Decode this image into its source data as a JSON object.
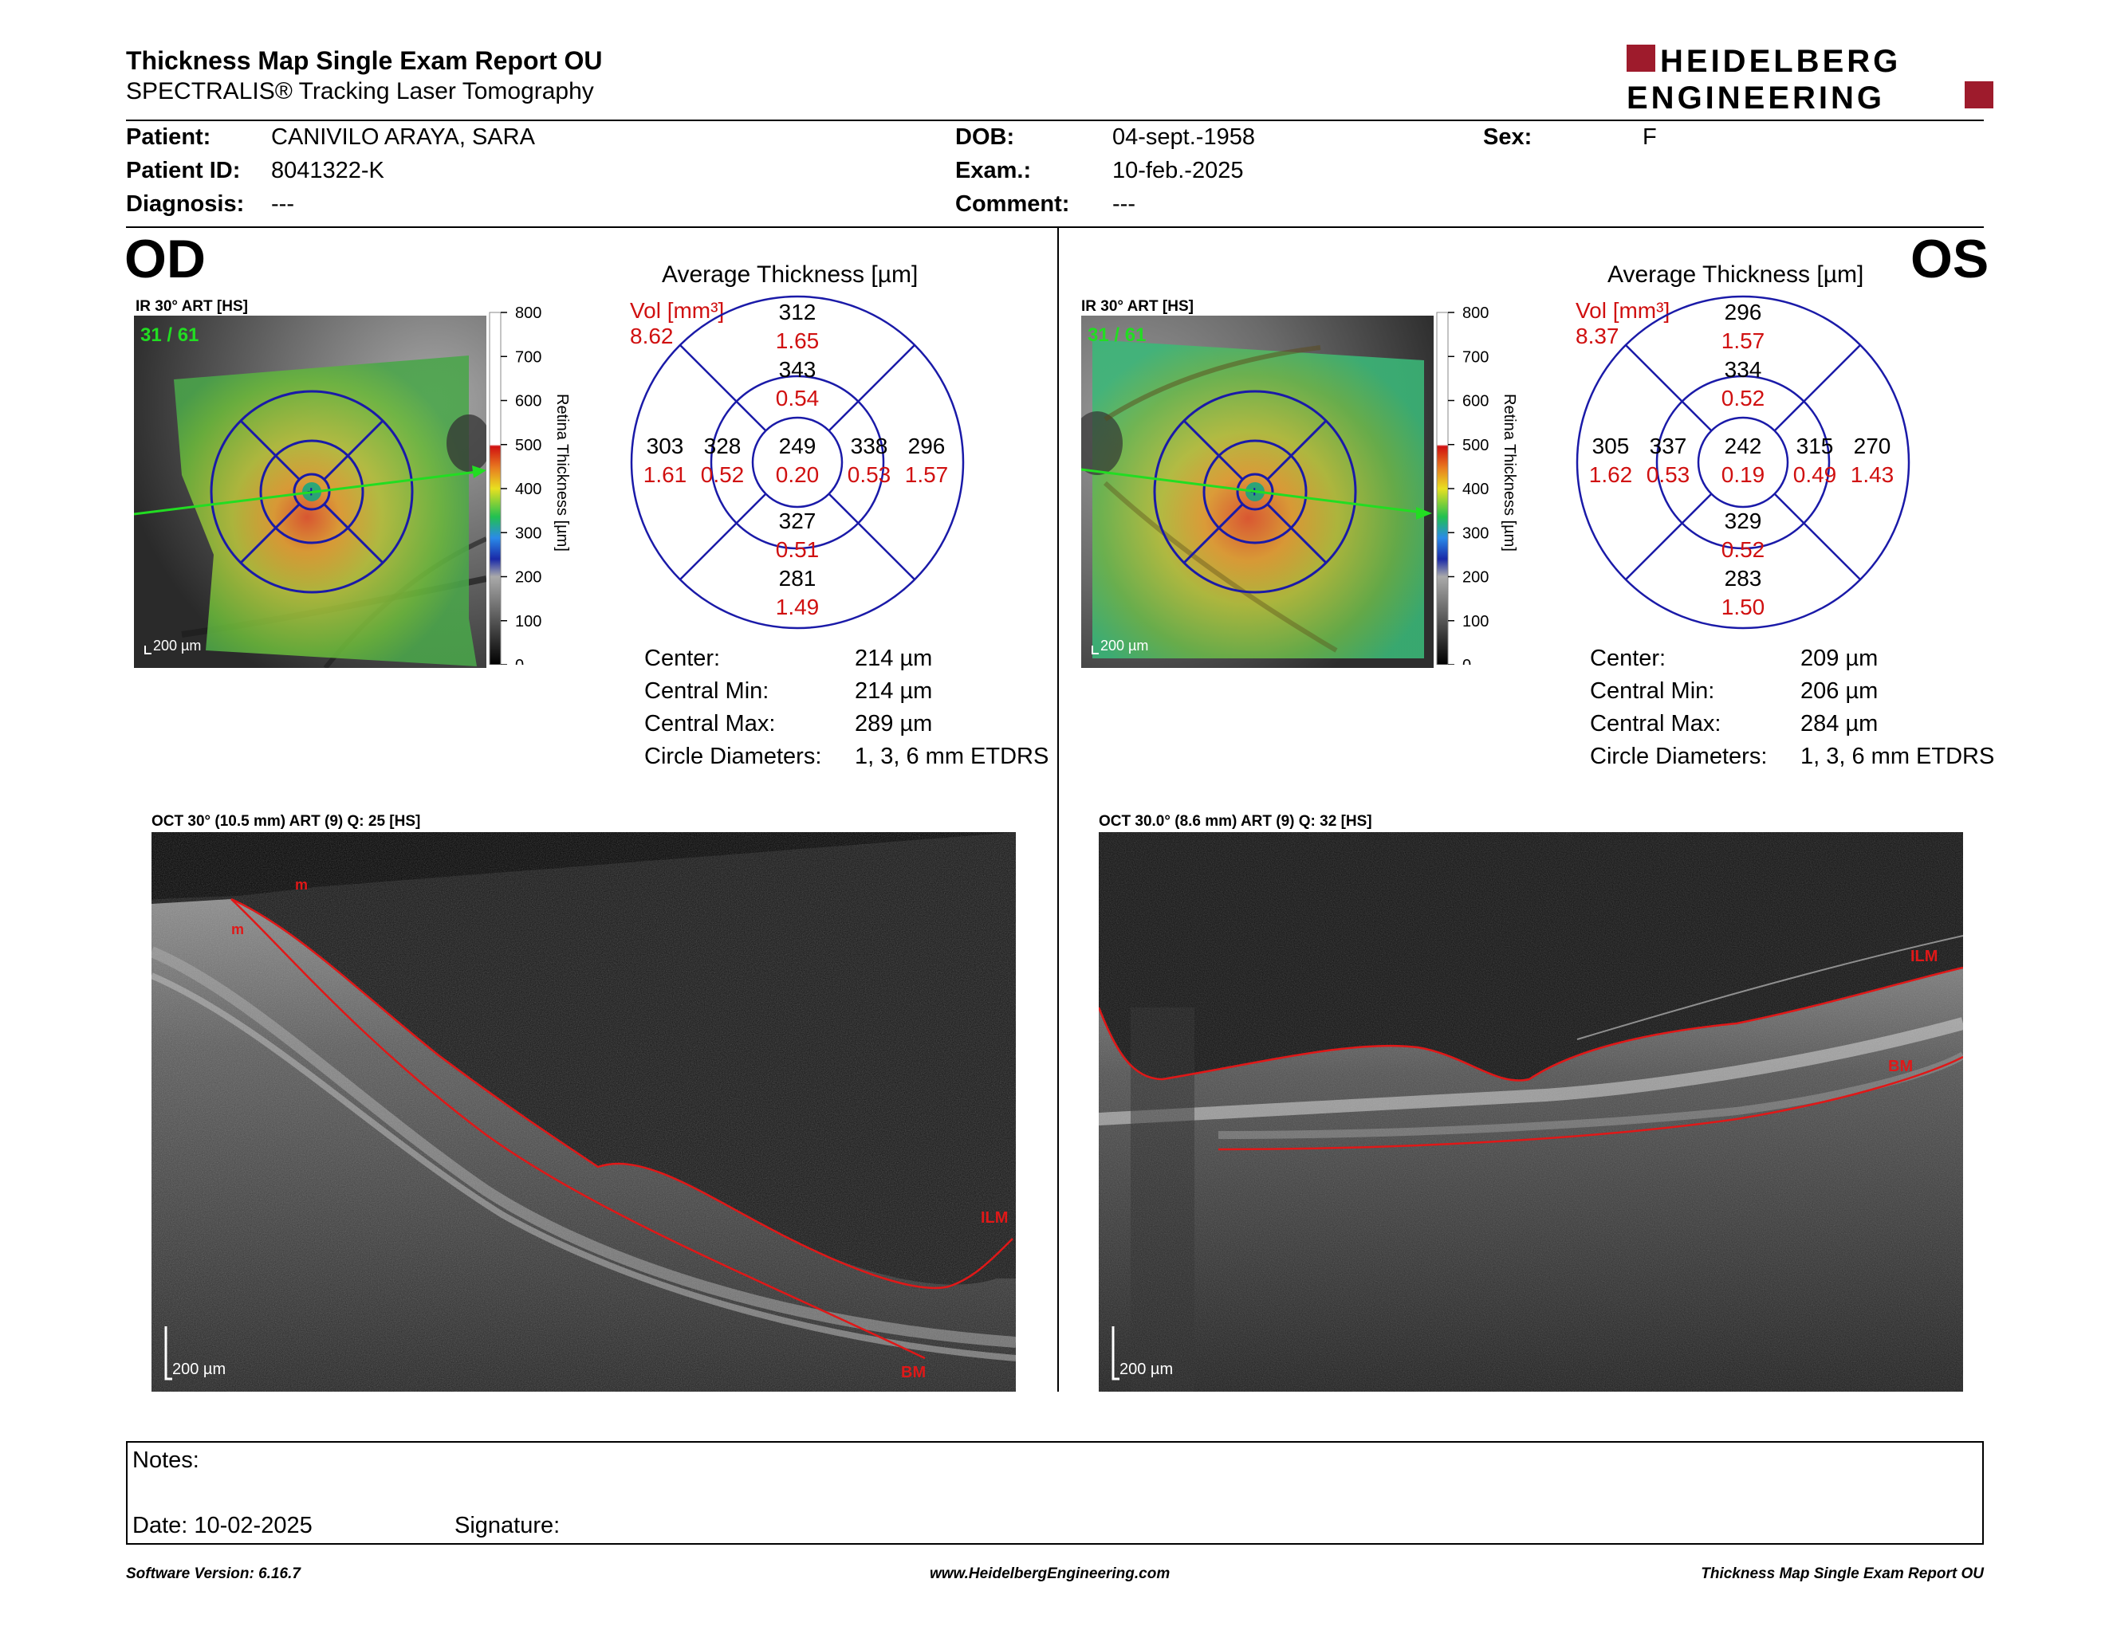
{
  "header": {
    "title": "Thickness Map Single Exam Report OU",
    "subtitle": "SPECTRALIS® Tracking Laser Tomography",
    "logo_line1": "HEIDELBERG",
    "logo_line2": "ENGINEERING"
  },
  "patient": {
    "patient_label": "Patient:",
    "patient_value": "CANIVILO ARAYA, SARA",
    "id_label": "Patient ID:",
    "id_value": "8041322-K",
    "diagnosis_label": "Diagnosis:",
    "diagnosis_value": "---",
    "dob_label": "DOB:",
    "dob_value": "04-sept.-1958",
    "exam_label": "Exam.:",
    "exam_value": "10-feb.-2025",
    "comment_label": "Comment:",
    "comment_value": "---",
    "sex_label": "Sex:",
    "sex_value": "F"
  },
  "od": {
    "eye": "OD",
    "ir_label": "IR 30° ART [HS]",
    "frame": "31 / 61",
    "scale": "200 µm",
    "avg_title": "Average Thickness [µm]",
    "vol_label": "Vol [mm³]",
    "vol_total": "8.62",
    "center": {
      "t": "249",
      "v": "0.20"
    },
    "inner": {
      "top": {
        "t": "343",
        "v": "0.54"
      },
      "bottom": {
        "t": "327",
        "v": "0.51"
      },
      "left": {
        "t": "328",
        "v": "0.52"
      },
      "right": {
        "t": "338",
        "v": "0.53"
      }
    },
    "outer": {
      "top": {
        "t": "312",
        "v": "1.65"
      },
      "bottom": {
        "t": "281",
        "v": "1.49"
      },
      "left": {
        "t": "303",
        "v": "1.61"
      },
      "right": {
        "t": "296",
        "v": "1.57"
      }
    },
    "stats": [
      {
        "label": "Center:",
        "value": "214 µm"
      },
      {
        "label": "Central Min:",
        "value": "214 µm"
      },
      {
        "label": "Central Max:",
        "value": "289 µm"
      },
      {
        "label": "Circle Diameters:",
        "value": "1, 3, 6 mm ETDRS"
      }
    ],
    "oct_label": "OCT 30° (10.5 mm) ART (9) Q: 25 [HS]",
    "oct_scale": "200 µm",
    "oct_ilm": "ILM",
    "oct_bm": "BM",
    "oct_m": "m"
  },
  "os": {
    "eye": "OS",
    "ir_label": "IR 30° ART [HS]",
    "frame": "31 / 61",
    "scale": "200 µm",
    "avg_title": "Average Thickness [µm]",
    "vol_label": "Vol [mm³]",
    "vol_total": "8.37",
    "center": {
      "t": "242",
      "v": "0.19"
    },
    "inner": {
      "top": {
        "t": "334",
        "v": "0.52"
      },
      "bottom": {
        "t": "329",
        "v": "0.52"
      },
      "left": {
        "t": "337",
        "v": "0.53"
      },
      "right": {
        "t": "315",
        "v": "0.49"
      }
    },
    "outer": {
      "top": {
        "t": "296",
        "v": "1.57"
      },
      "bottom": {
        "t": "283",
        "v": "1.50"
      },
      "left": {
        "t": "305",
        "v": "1.62"
      },
      "right": {
        "t": "270",
        "v": "1.43"
      }
    },
    "stats": [
      {
        "label": "Center:",
        "value": "209 µm"
      },
      {
        "label": "Central Min:",
        "value": "206 µm"
      },
      {
        "label": "Central Max:",
        "value": "284 µm"
      },
      {
        "label": "Circle Diameters:",
        "value": "1, 3, 6 mm ETDRS"
      }
    ],
    "oct_label": "OCT 30.0° (8.6 mm) ART (9) Q: 32 [HS]",
    "oct_scale": "200 µm",
    "oct_ilm": "ILM",
    "oct_bm": "BM"
  },
  "colorbar": {
    "ticks": [
      "800",
      "700",
      "600",
      "500",
      "400",
      "300",
      "200",
      "100",
      "0"
    ],
    "label": "Retina  Thickness [µm]"
  },
  "notes": {
    "notes_label": "Notes:",
    "date_label": "Date: 10-02-2025",
    "signature_label": "Signature:"
  },
  "footer": {
    "left": "Software Version: 6.16.7",
    "center": "www.HeidelbergEngineering.com",
    "right": "Thickness Map Single Exam Report OU"
  },
  "colors": {
    "accent_red": "#9e1b2c",
    "grid_blue": "#1a1aa8",
    "value_red": "#d01010",
    "frame_green": "#22dd22"
  }
}
